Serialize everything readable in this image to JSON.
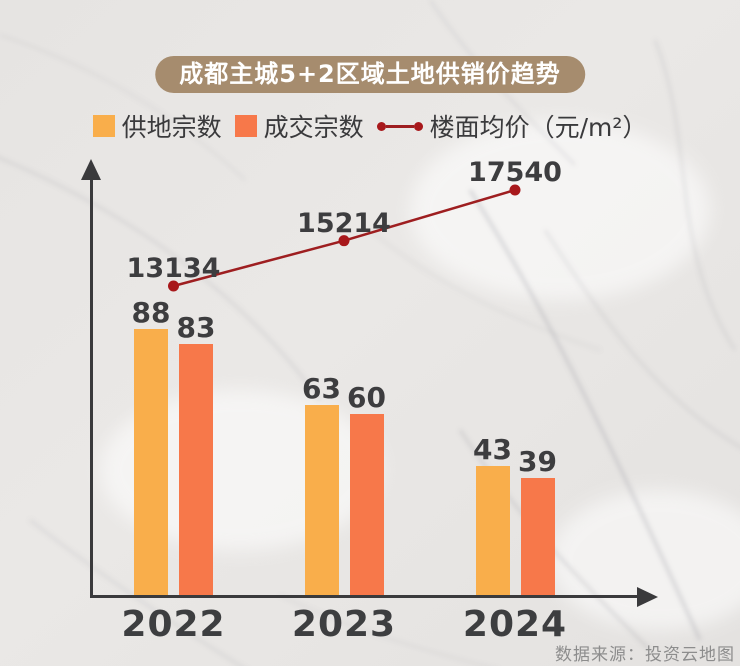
{
  "page": {
    "title_badge": "成都主城5+2区域土地供销价趋势",
    "source_note": "数据来源：投资云地图"
  },
  "legend": {
    "items": [
      {
        "label": "供地宗数",
        "swatch": "square",
        "color": "#F9AE4B"
      },
      {
        "label": "成交宗数",
        "swatch": "square",
        "color": "#F7784A"
      },
      {
        "label": "楼面均价（元/m²）",
        "swatch": "line-dots",
        "color": "#9E1E20",
        "dot_color": "#A8181B"
      }
    ]
  },
  "colors": {
    "supply_bar": "#F9AE4B",
    "sold_bar": "#F7784A",
    "price_line": "#9E1E20",
    "price_dot": "#A8181B",
    "axis": "#3A3A3C",
    "value_label": "#3D3D3F",
    "year_label": "#3D3E40",
    "badge_bg": "#A68C6E",
    "badge_text": "#FFFFFF",
    "source_text": "#8D8D8D",
    "background": "#E8E6E4"
  },
  "chart_data": {
    "type": "combo",
    "title": "成都主城5+2区域土地供销价趋势",
    "categories": [
      "2022",
      "2023",
      "2024"
    ],
    "series": [
      {
        "name": "供地宗数",
        "kind": "bar",
        "values": [
          88,
          63,
          43
        ],
        "color": "#F9AE4B"
      },
      {
        "name": "成交宗数",
        "kind": "bar",
        "values": [
          83,
          60,
          39
        ],
        "color": "#F7784A"
      },
      {
        "name": "楼面均价（元/m²）",
        "kind": "line",
        "values": [
          13134,
          15214,
          17540
        ],
        "color": "#9E1E20"
      }
    ],
    "xlabel": "",
    "ylabel": "",
    "bar_axis_implied_range": [
      0,
      140
    ],
    "line_axis_range_estimate": [
      11000,
      19000
    ],
    "grid": false,
    "legend_position": "top",
    "value_labels": true,
    "source": "数据来源：投资云地图"
  }
}
